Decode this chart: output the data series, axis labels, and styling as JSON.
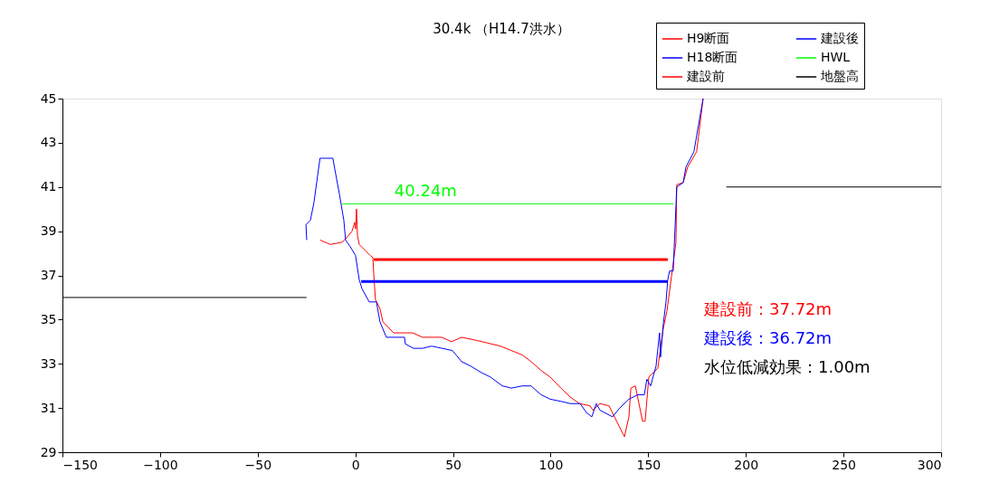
{
  "chart_data": {
    "type": "line",
    "title": "30.4k （H14.7洪水）",
    "xlim": [
      -150,
      300
    ],
    "xticks": [
      -150,
      -100,
      -50,
      0,
      50,
      100,
      150,
      200,
      250,
      300
    ],
    "ylim": [
      29,
      45
    ],
    "yticks": [
      29,
      31,
      33,
      35,
      37,
      39,
      41,
      43,
      45
    ],
    "grid": false,
    "legend": "top right",
    "marker": "none",
    "line_style": "solid",
    "series": [
      {
        "name": "H9断面",
        "color": "#ff0000",
        "x": [
          -18.1,
          -12.8,
          -6.8,
          -4.5,
          -1.7,
          -0.3,
          0.1,
          0.6,
          1.1,
          2.0,
          7.6,
          9.0,
          9.4,
          10.3,
          12.6,
          14.1,
          19.6,
          29.3,
          34.4,
          44.2,
          49.3,
          54.4,
          59.9,
          65.0,
          74.3,
          85.5,
          90.0,
          95.1,
          99.8,
          105.3,
          110.0,
          114.7,
          120.2,
          121.6,
          125.3,
          129.9,
          137.8,
          140.1,
          141.1,
          143.4,
          147.1,
          148.4,
          150.3,
          154.9,
          157.7,
          159.6,
          164.2,
          164.6,
          167.9,
          170.2,
          174.8,
          178.1
        ],
        "values": [
          38.6,
          38.4,
          38.5,
          38.7,
          39.0,
          39.4,
          39.1,
          40.0,
          38.8,
          38.4,
          37.9,
          37.8,
          37.1,
          35.9,
          35.5,
          34.9,
          34.4,
          34.4,
          34.2,
          34.2,
          34.0,
          34.2,
          34.1,
          34.0,
          33.8,
          33.4,
          33.1,
          32.7,
          32.4,
          31.9,
          31.5,
          31.2,
          31.1,
          30.9,
          31.2,
          31.1,
          29.7,
          30.6,
          31.9,
          32.0,
          30.4,
          30.4,
          32.4,
          32.8,
          34.6,
          35.4,
          38.5,
          41.1,
          41.2,
          41.9,
          42.6,
          45.0
        ]
      },
      {
        "name": "H18断面",
        "color": "#0000ff",
        "x": [
          -24.9,
          -25.3,
          -24.0,
          -23.0,
          -21.2,
          -18.1,
          -15.2,
          -11.5,
          -10.5,
          -8.2,
          -5.9,
          -5.0,
          -2.6,
          0.1,
          2.0,
          3.4,
          7.1,
          10.8,
          12.6,
          15.9,
          25.2,
          25.6,
          29.8,
          34.4,
          39.1,
          49.7,
          54.4,
          59.0,
          64.6,
          69.2,
          75.3,
          79.9,
          85.5,
          90.0,
          95.1,
          99.8,
          105.3,
          110.0,
          115.1,
          118.3,
          121.1,
          123.4,
          125.3,
          131.7,
          135.4,
          140.1,
          144.7,
          148.0,
          149.3,
          151.2,
          154.0,
          155.8,
          156.3,
          157.7,
          159.1,
          160.0,
          160.9,
          162.8,
          164.6,
          167.9,
          169.3,
          173.4,
          178.1
        ],
        "values": [
          38.6,
          39.3,
          39.4,
          39.5,
          40.3,
          42.3,
          42.3,
          42.3,
          41.8,
          40.7,
          39.5,
          38.6,
          38.3,
          37.9,
          36.8,
          36.4,
          35.8,
          35.8,
          34.9,
          34.2,
          34.2,
          33.9,
          33.7,
          33.7,
          33.8,
          33.6,
          33.1,
          32.9,
          32.6,
          32.4,
          32.0,
          31.9,
          32.0,
          32.0,
          31.6,
          31.4,
          31.3,
          31.2,
          31.2,
          30.8,
          30.6,
          31.2,
          30.9,
          30.6,
          31.0,
          31.4,
          31.6,
          31.6,
          32.3,
          32.0,
          32.9,
          34.4,
          33.3,
          34.8,
          35.8,
          36.8,
          37.2,
          37.2,
          41.0,
          41.2,
          41.9,
          42.6,
          45.0
        ]
      },
      {
        "name": "建設前",
        "color": "#ff0000",
        "x": [
          9.5,
          160
        ],
        "values": [
          37.72,
          37.72
        ]
      },
      {
        "name": "建設後",
        "color": "#0000ff",
        "x": [
          3,
          160
        ],
        "values": [
          36.72,
          36.72
        ]
      },
      {
        "name": "HWL",
        "color": "#00ff00",
        "x": [
          -7,
          163
        ],
        "values": [
          40.24,
          40.24
        ]
      },
      {
        "name": "地盤高",
        "color": "#000000",
        "x": [
          -150,
          -25,
          80,
          190,
          300
        ],
        "values": [
          36.0,
          36.0,
          null,
          41.0,
          41.0
        ]
      }
    ],
    "annotations": [
      {
        "text": "40.24m",
        "x": 20,
        "y": 40.24
      },
      "建設前：37.72m",
      "建設後：36.72m",
      "水位低減効果：1.00m"
    ]
  }
}
